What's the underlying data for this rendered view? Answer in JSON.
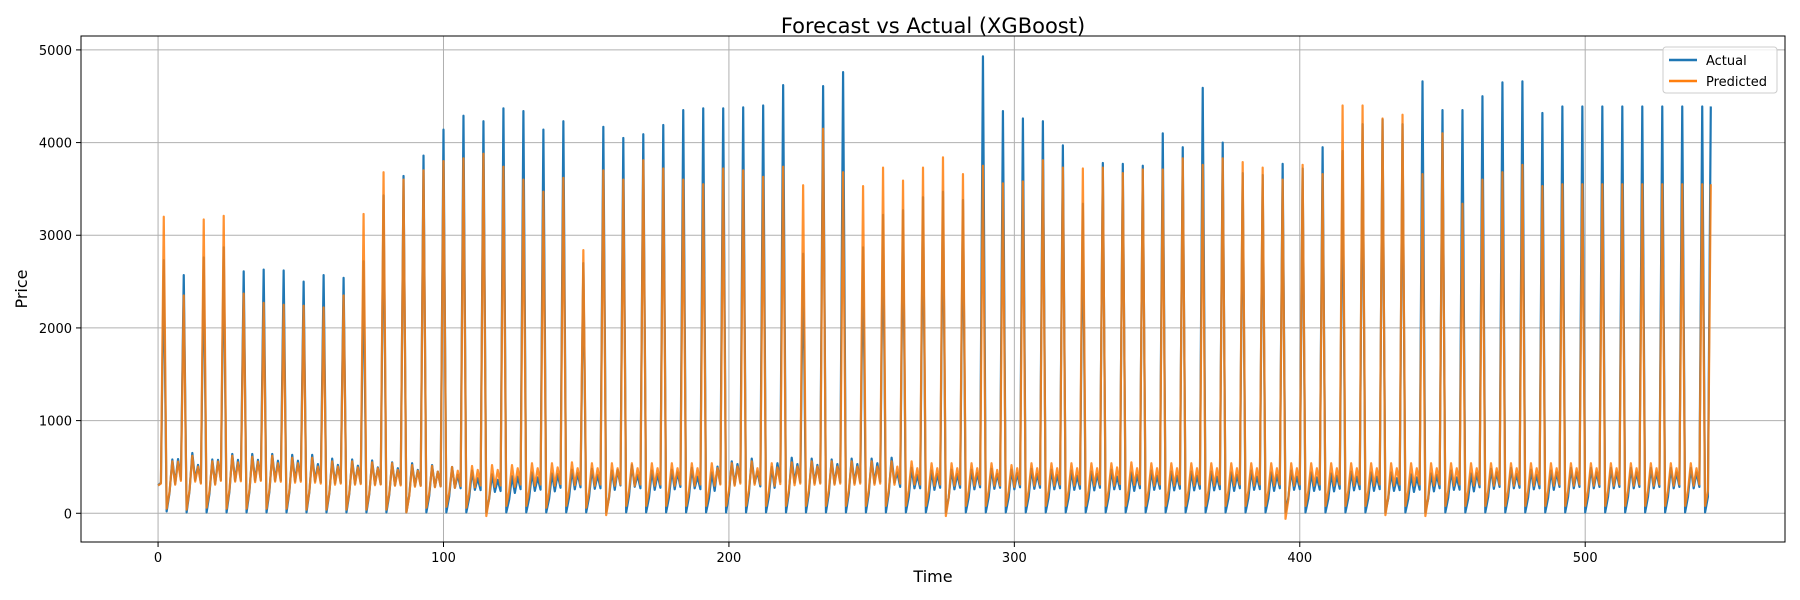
{
  "chart_data": {
    "type": "line",
    "title": "Forecast vs Actual (XGBoost)",
    "xlabel": "Time",
    "ylabel": "Price",
    "xlim": [
      -27,
      570
    ],
    "ylim": [
      -310,
      5150
    ],
    "xticks": [
      0,
      100,
      200,
      300,
      400,
      500
    ],
    "yticks": [
      0,
      1000,
      2000,
      3000,
      4000,
      5000
    ],
    "grid": true,
    "legend_position": "top-right",
    "x_range": [
      0,
      544
    ],
    "cycle_period": 7,
    "series": [
      {
        "name": "Actual",
        "color": "#1f77b4",
        "big_peaks": [
          2780,
          2730,
          2570,
          2760,
          2870,
          2610,
          2630,
          2620,
          2500,
          2570,
          2540,
          2720,
          3430,
          3640,
          3860,
          4140,
          4290,
          4230,
          4370,
          4340,
          4140,
          4230,
          2700,
          4170,
          4050,
          4090,
          4190,
          4350,
          4370,
          4370,
          4380,
          4400,
          4620,
          2800,
          4610,
          4760,
          2870,
          3220,
          3270,
          3410,
          3470,
          3380,
          4930,
          4340,
          4260,
          4230,
          3970,
          3340,
          3780,
          3770,
          3750,
          4100,
          3950,
          4590,
          4000,
          3670,
          3650,
          3770,
          3720,
          3950,
          3910,
          4200,
          4250,
          4200,
          4660,
          4350,
          4350,
          4500,
          4650,
          4660,
          4320,
          4390
        ],
        "mid_peaks": [
          580,
          650,
          580,
          640,
          640,
          640,
          630,
          630,
          590,
          580,
          570,
          550,
          540,
          520,
          500,
          460,
          420,
          400,
          440,
          430,
          470,
          480,
          460,
          520,
          460,
          470,
          490,
          440,
          560,
          590,
          500,
          600,
          590,
          580,
          590,
          590,
          600,
          490,
          460,
          470,
          470,
          480,
          470,
          480,
          470,
          460,
          450,
          470,
          440,
          460,
          450,
          450,
          450,
          440,
          460,
          440,
          460,
          440,
          430,
          450,
          440,
          440,
          420,
          430,
          460,
          430,
          480,
          490,
          470,
          460,
          490
        ],
        "troughs": [
          20,
          10,
          10,
          10,
          10,
          10,
          10,
          10,
          10,
          10,
          10,
          10,
          10,
          10,
          10,
          10,
          10,
          10,
          10,
          10,
          10,
          10,
          10,
          10,
          10,
          10,
          10,
          10,
          10,
          10,
          10,
          10,
          10,
          10,
          10,
          10,
          10,
          10,
          10,
          10,
          10,
          10,
          10,
          10,
          10,
          10,
          10,
          10,
          10,
          10,
          10,
          10,
          10,
          10,
          10,
          10,
          10,
          10,
          10,
          10,
          10,
          10,
          10,
          10,
          10,
          10,
          10,
          10,
          10,
          10,
          10,
          10
        ]
      },
      {
        "name": "Predicted",
        "color": "#ff7f0e",
        "big_peaks": [
          3020,
          3200,
          2350,
          3170,
          3210,
          2370,
          2270,
          2250,
          2240,
          2220,
          2350,
          3230,
          3680,
          3600,
          3700,
          3800,
          3830,
          3880,
          3740,
          3600,
          3470,
          3620,
          2840,
          3700,
          3600,
          3810,
          3720,
          3600,
          3550,
          3720,
          3700,
          3630,
          3740,
          3540,
          4150,
          3680,
          3530,
          3730,
          3590,
          3730,
          3840,
          3660,
          3750,
          3560,
          3580,
          3810,
          3730,
          3720,
          3730,
          3670,
          3710,
          3710,
          3830,
          3760,
          3830,
          3790,
          3730,
          3600,
          3760,
          3660,
          4400,
          4400,
          4260,
          4300,
          3660,
          4100,
          3340,
          3600,
          3680,
          3760,
          3530,
          3550
        ],
        "mid_peaks": [
          560,
          620,
          560,
          620,
          610,
          620,
          600,
          600,
          560,
          560,
          550,
          540,
          520,
          510,
          500,
          510,
          520,
          520,
          540,
          540,
          550,
          540,
          540,
          540,
          540,
          540,
          540,
          540,
          540,
          560,
          540,
          550,
          560,
          560,
          560,
          560,
          560,
          560,
          540,
          540,
          540,
          540,
          520,
          540,
          540,
          540,
          540,
          540,
          550,
          540,
          540,
          540,
          540,
          540,
          540,
          540,
          540,
          540,
          540,
          540,
          540,
          540,
          540,
          540,
          540,
          540,
          540,
          540,
          540,
          540,
          540
        ],
        "troughs": [
          50,
          40,
          60,
          50,
          50,
          50,
          50,
          40,
          40,
          40,
          40,
          40,
          10,
          60,
          70,
          60,
          -30,
          80,
          80,
          60,
          80,
          60,
          -20,
          80,
          80,
          80,
          80,
          80,
          80,
          80,
          80,
          80,
          80,
          80,
          80,
          80,
          80,
          80,
          80,
          -30,
          80,
          80,
          80,
          80,
          80,
          80,
          80,
          80,
          80,
          80,
          80,
          80,
          80,
          80,
          80,
          80,
          -60,
          80,
          80,
          80,
          80,
          -20,
          80,
          -30,
          80,
          80,
          80,
          80,
          80,
          80,
          80,
          80
        ]
      }
    ]
  }
}
